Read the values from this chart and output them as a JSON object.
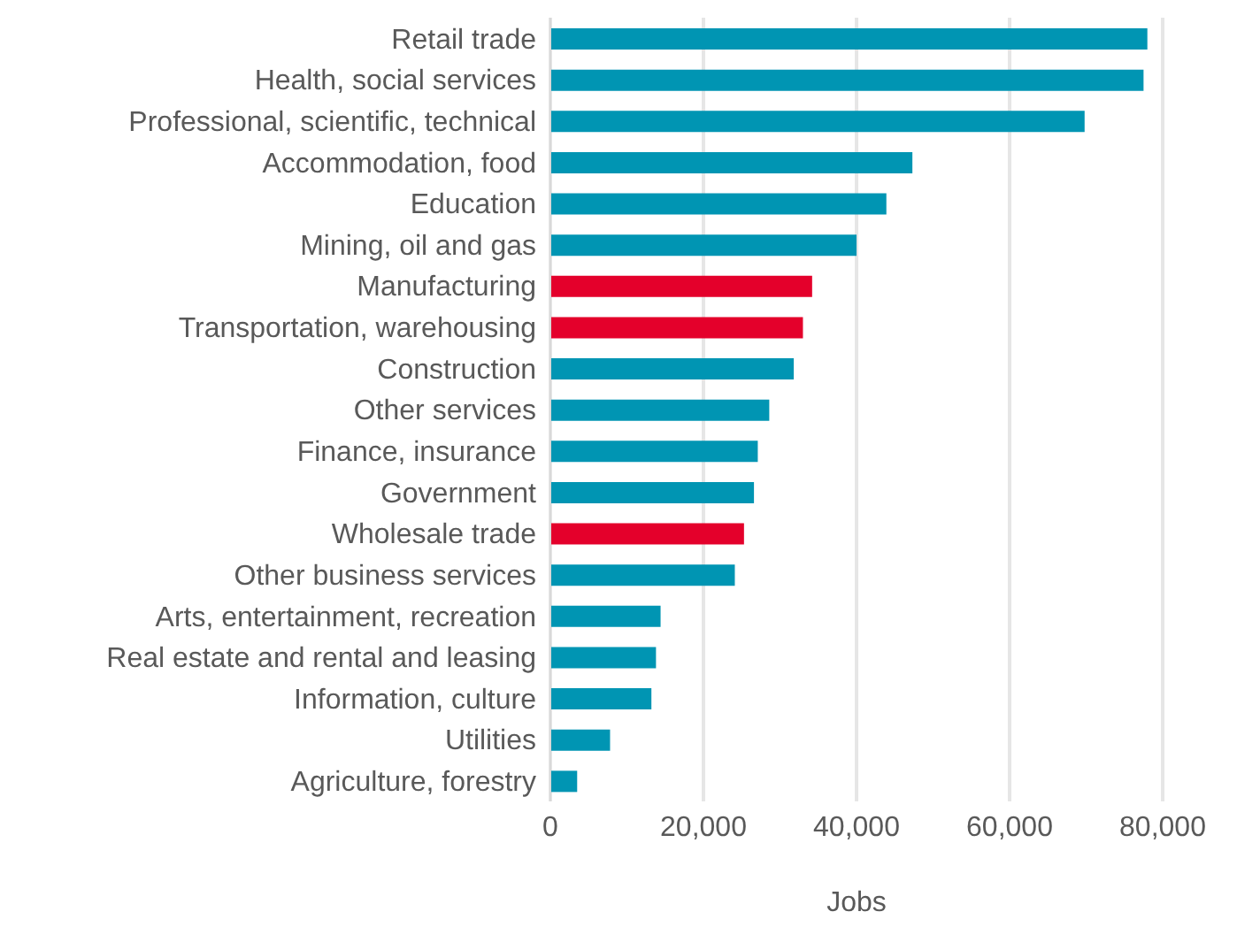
{
  "chart_data": {
    "type": "bar",
    "orientation": "horizontal",
    "xlabel": "Jobs",
    "categories": [
      "Retail trade",
      "Health, social services",
      "Professional, scientific, technical",
      "Accommodation, food",
      "Education",
      "Mining, oil and gas",
      "Manufacturing",
      "Transportation, warehousing",
      "Construction",
      "Other services",
      "Finance, insurance",
      "Government",
      "Wholesale trade",
      "Other business services",
      "Arts, entertainment, recreation",
      "Real estate and rental and leasing",
      "Information, culture",
      "Utilities",
      "Agriculture, forestry"
    ],
    "values": [
      78000,
      77500,
      69800,
      47300,
      43900,
      40000,
      34200,
      33000,
      31800,
      28600,
      27100,
      26600,
      25300,
      24100,
      14400,
      13800,
      13200,
      7800,
      3500
    ],
    "colors": [
      "#0095b3",
      "#0095b3",
      "#0095b3",
      "#0095b3",
      "#0095b3",
      "#0095b3",
      "#e4002b",
      "#e4002b",
      "#0095b3",
      "#0095b3",
      "#0095b3",
      "#0095b3",
      "#e4002b",
      "#0095b3",
      "#0095b3",
      "#0095b3",
      "#0095b3",
      "#0095b3",
      "#0095b3"
    ],
    "xlim": [
      0,
      80000
    ],
    "xticks": [
      {
        "value": 0,
        "label": "0"
      },
      {
        "value": 20000,
        "label": "20,000"
      },
      {
        "value": 40000,
        "label": "40,000"
      },
      {
        "value": 60000,
        "label": "60,000"
      },
      {
        "value": 80000,
        "label": "80,000"
      }
    ],
    "grid": "x"
  }
}
